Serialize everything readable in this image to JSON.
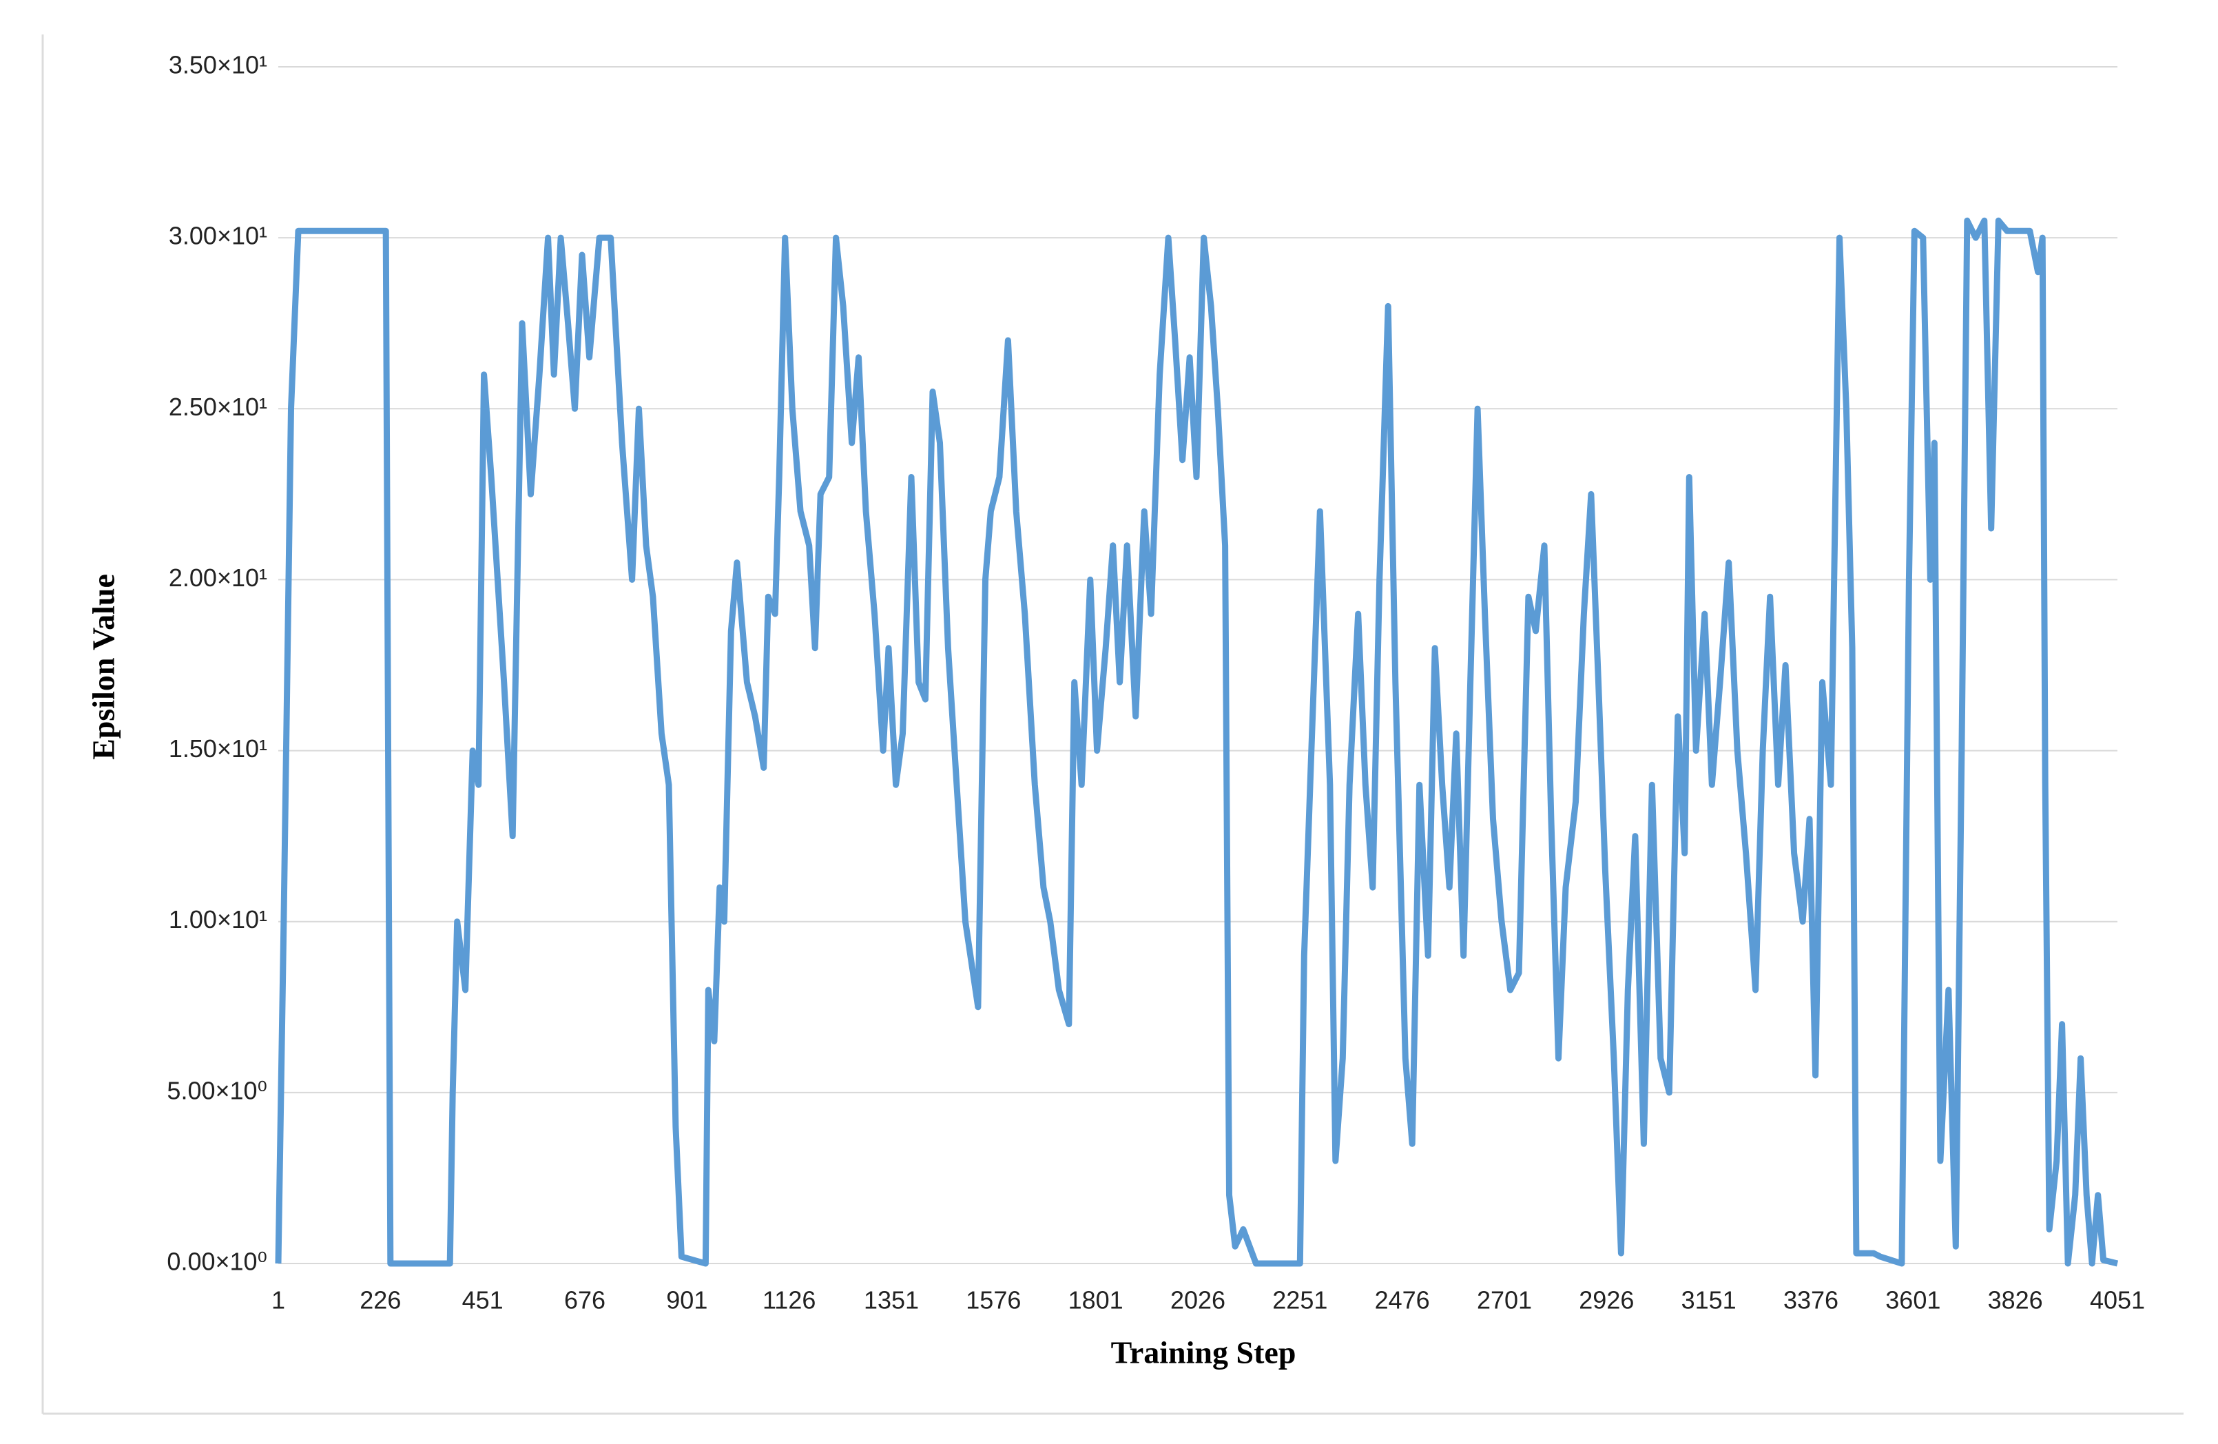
{
  "chart_data": {
    "type": "line",
    "x_label": "Training Step",
    "y_label": "Epsilon Value",
    "color": "#5b9bd5",
    "grid": true,
    "xlim": [
      1,
      4051
    ],
    "xticks": [
      1,
      226,
      451,
      676,
      901,
      1126,
      1351,
      1576,
      1801,
      2026,
      2251,
      2476,
      2701,
      2926,
      3151,
      3376,
      3601,
      3826,
      4051
    ],
    "ylim": [
      0,
      35
    ],
    "yticks": [
      {
        "value": 0,
        "label": "0.00×10⁰"
      },
      {
        "value": 5,
        "label": "5.00×10⁰"
      },
      {
        "value": 10,
        "label": "1.00×10¹"
      },
      {
        "value": 15,
        "label": "1.50×10¹"
      },
      {
        "value": 20,
        "label": "2.00×10¹"
      },
      {
        "value": 25,
        "label": "2.50×10¹"
      },
      {
        "value": 30,
        "label": "3.00×10¹"
      },
      {
        "value": 35,
        "label": "3.50×10¹"
      }
    ],
    "x": [
      1,
      13,
      29,
      45,
      238,
      248,
      379,
      385,
      395,
      413,
      429,
      442,
      454,
      470,
      498,
      517,
      538,
      557,
      576,
      595,
      608,
      623,
      639,
      654,
      670,
      686,
      708,
      733,
      758,
      780,
      795,
      811,
      826,
      845,
      861,
      876,
      889,
      942,
      948,
      961,
      973,
      983,
      998,
      1011,
      1033,
      1051,
      1070,
      1080,
      1095,
      1104,
      1117,
      1133,
      1151,
      1170,
      1183,
      1195,
      1214,
      1229,
      1245,
      1264,
      1279,
      1295,
      1314,
      1333,
      1345,
      1361,
      1376,
      1395,
      1411,
      1426,
      1442,
      1458,
      1476,
      1495,
      1514,
      1542,
      1558,
      1570,
      1589,
      1608,
      1626,
      1645,
      1667,
      1686,
      1701,
      1720,
      1742,
      1754,
      1770,
      1789,
      1804,
      1823,
      1839,
      1854,
      1870,
      1889,
      1908,
      1923,
      1942,
      1961,
      1976,
      1992,
      2008,
      2023,
      2039,
      2055,
      2070,
      2086,
      2095,
      2108,
      2126,
      2154,
      2251,
      2260,
      2276,
      2295,
      2317,
      2329,
      2345,
      2360,
      2379,
      2395,
      2411,
      2426,
      2445,
      2461,
      2483,
      2498,
      2514,
      2533,
      2548,
      2564,
      2580,
      2595,
      2611,
      2626,
      2642,
      2658,
      2676,
      2695,
      2714,
      2733,
      2754,
      2770,
      2789,
      2804,
      2820,
      2836,
      2858,
      2876,
      2892,
      2908,
      2923,
      2942,
      2958,
      2973,
      2989,
      3008,
      3026,
      3045,
      3064,
      3083,
      3098,
      3108,
      3123,
      3142,
      3158,
      3176,
      3195,
      3214,
      3233,
      3254,
      3270,
      3286,
      3304,
      3320,
      3339,
      3358,
      3373,
      3386,
      3401,
      3420,
      3439,
      3454,
      3467,
      3476,
      3514,
      3529,
      3576,
      3592,
      3604,
      3623,
      3639,
      3648,
      3661,
      3679,
      3695,
      3708,
      3720,
      3739,
      3758,
      3773,
      3789,
      3808,
      3858,
      3876,
      3886,
      3892,
      3901,
      3917,
      3929,
      3942,
      3958,
      3970,
      3983,
      3995,
      4008,
      4020,
      4051
    ],
    "values": [
      0,
      10,
      25,
      30.2,
      30.2,
      0,
      0,
      5,
      10,
      8,
      15,
      14,
      26,
      23,
      17,
      12.5,
      27.5,
      22.5,
      26,
      30,
      26,
      30,
      27.5,
      25,
      29.5,
      26.5,
      30,
      30,
      24,
      20,
      25,
      21,
      19.5,
      15.5,
      14,
      4,
      0.2,
      0,
      8,
      6.5,
      11,
      10,
      18.5,
      20.5,
      17,
      16,
      14.5,
      19.5,
      19,
      23,
      30,
      25,
      22,
      21,
      18,
      22.5,
      23,
      30,
      28,
      24,
      26.5,
      22,
      19,
      15,
      18,
      14,
      15.5,
      23,
      17,
      16.5,
      25.5,
      24,
      18,
      14,
      10,
      7.5,
      20,
      22,
      23,
      27,
      22,
      19,
      14,
      11,
      10,
      8,
      7,
      17,
      14,
      20,
      15,
      18,
      21,
      17,
      21,
      16,
      22,
      19,
      26,
      30,
      27,
      23.5,
      26.5,
      23,
      30,
      28,
      25,
      21,
      2,
      0.5,
      1,
      0,
      0,
      9,
      15,
      22,
      14,
      3,
      6,
      14,
      19,
      14,
      11,
      20,
      28,
      17,
      6,
      3.5,
      14,
      9,
      18,
      14,
      11,
      15.5,
      9,
      17,
      25,
      19,
      13,
      10,
      8,
      8.5,
      19.5,
      18.5,
      21,
      13,
      6,
      11,
      13.5,
      19,
      22.5,
      17,
      11.5,
      6,
      0.3,
      8,
      12.5,
      3.5,
      14,
      6,
      5,
      16,
      12,
      23,
      15,
      19,
      14,
      17,
      20.5,
      15,
      12,
      8,
      15,
      19.5,
      14,
      17.5,
      12,
      10,
      13,
      5.5,
      17,
      14,
      30,
      25,
      18,
      0.3,
      0.3,
      0.2,
      0,
      20,
      30.2,
      30,
      20,
      24,
      3,
      8,
      0.5,
      15,
      30.5,
      30,
      30.5,
      21.5,
      30.5,
      30.2,
      30.2,
      29,
      30,
      14,
      1,
      3,
      7,
      0,
      2,
      6,
      2,
      0,
      2,
      0.1,
      0
    ]
  }
}
